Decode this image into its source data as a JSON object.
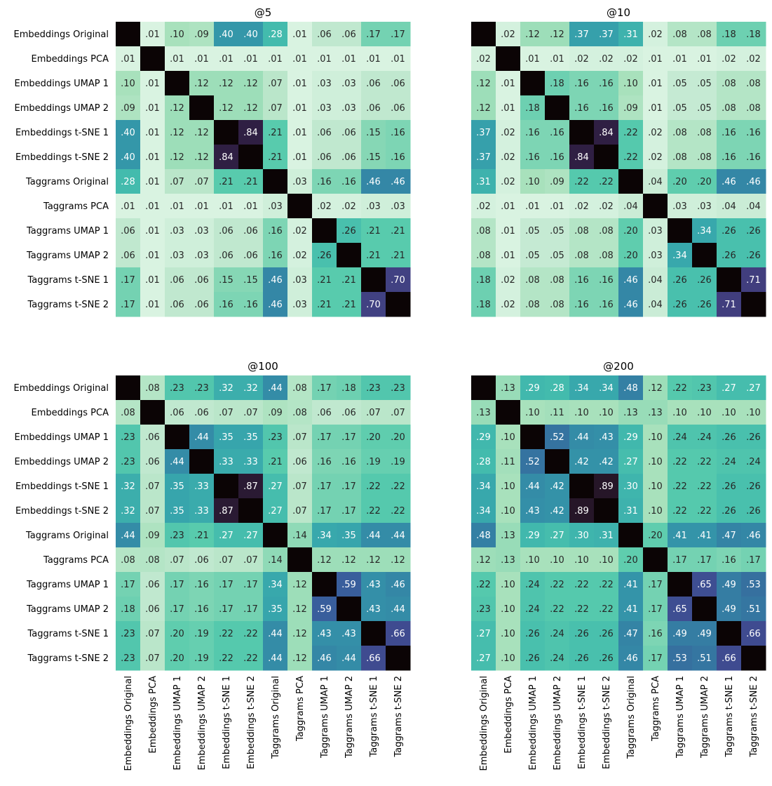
{
  "chart_data": {
    "type": "heatmap",
    "labels": [
      "Embeddings Original",
      "Embeddings PCA",
      "Embeddings UMAP 1",
      "Embeddings UMAP 2",
      "Embeddings t-SNE 1",
      "Embeddings t-SNE 2",
      "Taggrams Original",
      "Taggrams PCA",
      "Taggrams UMAP 1",
      "Taggrams UMAP 2",
      "Taggrams t-SNE 1",
      "Taggrams t-SNE 2"
    ],
    "colormap": "mako_r",
    "vrange": [
      0,
      1
    ],
    "diagonal_color": "#0b0405",
    "panels": [
      {
        "title": "@5",
        "matrix": [
          [
            null,
            0.01,
            0.1,
            0.09,
            0.4,
            0.4,
            0.28,
            0.01,
            0.06,
            0.06,
            0.17,
            0.17
          ],
          [
            0.01,
            null,
            0.01,
            0.01,
            0.01,
            0.01,
            0.01,
            0.01,
            0.01,
            0.01,
            0.01,
            0.01
          ],
          [
            0.1,
            0.01,
            null,
            0.12,
            0.12,
            0.12,
            0.07,
            0.01,
            0.03,
            0.03,
            0.06,
            0.06
          ],
          [
            0.09,
            0.01,
            0.12,
            null,
            0.12,
            0.12,
            0.07,
            0.01,
            0.03,
            0.03,
            0.06,
            0.06
          ],
          [
            0.4,
            0.01,
            0.12,
            0.12,
            null,
            0.84,
            0.21,
            0.01,
            0.06,
            0.06,
            0.15,
            0.16
          ],
          [
            0.4,
            0.01,
            0.12,
            0.12,
            0.84,
            null,
            0.21,
            0.01,
            0.06,
            0.06,
            0.15,
            0.16
          ],
          [
            0.28,
            0.01,
            0.07,
            0.07,
            0.21,
            0.21,
            null,
            0.03,
            0.16,
            0.16,
            0.46,
            0.46
          ],
          [
            0.01,
            0.01,
            0.01,
            0.01,
            0.01,
            0.01,
            0.03,
            null,
            0.02,
            0.02,
            0.03,
            0.03
          ],
          [
            0.06,
            0.01,
            0.03,
            0.03,
            0.06,
            0.06,
            0.16,
            0.02,
            null,
            0.26,
            0.21,
            0.21
          ],
          [
            0.06,
            0.01,
            0.03,
            0.03,
            0.06,
            0.06,
            0.16,
            0.02,
            0.26,
            null,
            0.21,
            0.21
          ],
          [
            0.17,
            0.01,
            0.06,
            0.06,
            0.15,
            0.15,
            0.46,
            0.03,
            0.21,
            0.21,
            null,
            0.7
          ],
          [
            0.17,
            0.01,
            0.06,
            0.06,
            0.16,
            0.16,
            0.46,
            0.03,
            0.21,
            0.21,
            0.7,
            null
          ]
        ]
      },
      {
        "title": "@10",
        "matrix": [
          [
            null,
            0.02,
            0.12,
            0.12,
            0.37,
            0.37,
            0.31,
            0.02,
            0.08,
            0.08,
            0.18,
            0.18
          ],
          [
            0.02,
            null,
            0.01,
            0.01,
            0.02,
            0.02,
            0.02,
            0.01,
            0.01,
            0.01,
            0.02,
            0.02
          ],
          [
            0.12,
            0.01,
            null,
            0.18,
            0.16,
            0.16,
            0.1,
            0.01,
            0.05,
            0.05,
            0.08,
            0.08
          ],
          [
            0.12,
            0.01,
            0.18,
            null,
            0.16,
            0.16,
            0.09,
            0.01,
            0.05,
            0.05,
            0.08,
            0.08
          ],
          [
            0.37,
            0.02,
            0.16,
            0.16,
            null,
            0.84,
            0.22,
            0.02,
            0.08,
            0.08,
            0.16,
            0.16
          ],
          [
            0.37,
            0.02,
            0.16,
            0.16,
            0.84,
            null,
            0.22,
            0.02,
            0.08,
            0.08,
            0.16,
            0.16
          ],
          [
            0.31,
            0.02,
            0.1,
            0.09,
            0.22,
            0.22,
            null,
            0.04,
            0.2,
            0.2,
            0.46,
            0.46
          ],
          [
            0.02,
            0.01,
            0.01,
            0.01,
            0.02,
            0.02,
            0.04,
            null,
            0.03,
            0.03,
            0.04,
            0.04
          ],
          [
            0.08,
            0.01,
            0.05,
            0.05,
            0.08,
            0.08,
            0.2,
            0.03,
            null,
            0.34,
            0.26,
            0.26
          ],
          [
            0.08,
            0.01,
            0.05,
            0.05,
            0.08,
            0.08,
            0.2,
            0.03,
            0.34,
            null,
            0.26,
            0.26
          ],
          [
            0.18,
            0.02,
            0.08,
            0.08,
            0.16,
            0.16,
            0.46,
            0.04,
            0.26,
            0.26,
            null,
            0.71
          ],
          [
            0.18,
            0.02,
            0.08,
            0.08,
            0.16,
            0.16,
            0.46,
            0.04,
            0.26,
            0.26,
            0.71,
            null
          ]
        ]
      },
      {
        "title": "@100",
        "matrix": [
          [
            null,
            0.08,
            0.23,
            0.23,
            0.32,
            0.32,
            0.44,
            0.08,
            0.17,
            0.18,
            0.23,
            0.23
          ],
          [
            0.08,
            null,
            0.06,
            0.06,
            0.07,
            0.07,
            0.09,
            0.08,
            0.06,
            0.06,
            0.07,
            0.07
          ],
          [
            0.23,
            0.06,
            null,
            0.44,
            0.35,
            0.35,
            0.23,
            0.07,
            0.17,
            0.17,
            0.2,
            0.2
          ],
          [
            0.23,
            0.06,
            0.44,
            null,
            0.33,
            0.33,
            0.21,
            0.06,
            0.16,
            0.16,
            0.19,
            0.19
          ],
          [
            0.32,
            0.07,
            0.35,
            0.33,
            null,
            0.87,
            0.27,
            0.07,
            0.17,
            0.17,
            0.22,
            0.22
          ],
          [
            0.32,
            0.07,
            0.35,
            0.33,
            0.87,
            null,
            0.27,
            0.07,
            0.17,
            0.17,
            0.22,
            0.22
          ],
          [
            0.44,
            0.09,
            0.23,
            0.21,
            0.27,
            0.27,
            null,
            0.14,
            0.34,
            0.35,
            0.44,
            0.44
          ],
          [
            0.08,
            0.08,
            0.07,
            0.06,
            0.07,
            0.07,
            0.14,
            null,
            0.12,
            0.12,
            0.12,
            0.12
          ],
          [
            0.17,
            0.06,
            0.17,
            0.16,
            0.17,
            0.17,
            0.34,
            0.12,
            null,
            0.59,
            0.43,
            0.46
          ],
          [
            0.18,
            0.06,
            0.17,
            0.16,
            0.17,
            0.17,
            0.35,
            0.12,
            0.59,
            null,
            0.43,
            0.44
          ],
          [
            0.23,
            0.07,
            0.2,
            0.19,
            0.22,
            0.22,
            0.44,
            0.12,
            0.43,
            0.43,
            null,
            0.66
          ],
          [
            0.23,
            0.07,
            0.2,
            0.19,
            0.22,
            0.22,
            0.44,
            0.12,
            0.46,
            0.44,
            0.66,
            null
          ]
        ]
      },
      {
        "title": "@200",
        "matrix": [
          [
            null,
            0.13,
            0.29,
            0.28,
            0.34,
            0.34,
            0.48,
            0.12,
            0.22,
            0.23,
            0.27,
            0.27
          ],
          [
            0.13,
            null,
            0.1,
            0.11,
            0.1,
            0.1,
            0.13,
            0.13,
            0.1,
            0.1,
            0.1,
            0.1
          ],
          [
            0.29,
            0.1,
            null,
            0.52,
            0.44,
            0.43,
            0.29,
            0.1,
            0.24,
            0.24,
            0.26,
            0.26
          ],
          [
            0.28,
            0.11,
            0.52,
            null,
            0.42,
            0.42,
            0.27,
            0.1,
            0.22,
            0.22,
            0.24,
            0.24
          ],
          [
            0.34,
            0.1,
            0.44,
            0.42,
            null,
            0.89,
            0.3,
            0.1,
            0.22,
            0.22,
            0.26,
            0.26
          ],
          [
            0.34,
            0.1,
            0.43,
            0.42,
            0.89,
            null,
            0.31,
            0.1,
            0.22,
            0.22,
            0.26,
            0.26
          ],
          [
            0.48,
            0.13,
            0.29,
            0.27,
            0.3,
            0.31,
            null,
            0.2,
            0.41,
            0.41,
            0.47,
            0.46
          ],
          [
            0.12,
            0.13,
            0.1,
            0.1,
            0.1,
            0.1,
            0.2,
            null,
            0.17,
            0.17,
            0.16,
            0.17
          ],
          [
            0.22,
            0.1,
            0.24,
            0.22,
            0.22,
            0.22,
            0.41,
            0.17,
            null,
            0.65,
            0.49,
            0.53
          ],
          [
            0.23,
            0.1,
            0.24,
            0.22,
            0.22,
            0.22,
            0.41,
            0.17,
            0.65,
            null,
            0.49,
            0.51
          ],
          [
            0.27,
            0.1,
            0.26,
            0.24,
            0.26,
            0.26,
            0.47,
            0.16,
            0.49,
            0.49,
            null,
            0.66
          ],
          [
            0.27,
            0.1,
            0.26,
            0.24,
            0.26,
            0.26,
            0.46,
            0.17,
            0.53,
            0.51,
            0.66,
            null
          ]
        ]
      }
    ]
  }
}
